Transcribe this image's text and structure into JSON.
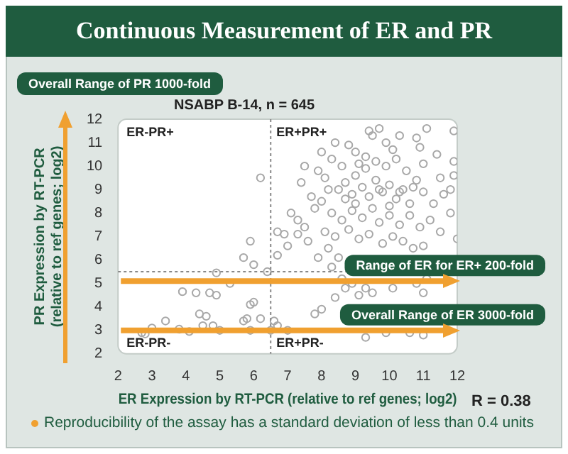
{
  "chart_data": {
    "type": "scatter",
    "title": "Continuous Measurement of ER and PR",
    "subtitle": "NSABP B-14, n = 645",
    "xlabel": "ER Expression by RT-PCR (relative to ref genes; log2)",
    "ylabel": "PR Expression by RT-PCR\n(relative to ref genes; log2)",
    "series": [
      {
        "color": "#a8a8a8",
        "x": [
          6.2,
          5.9,
          5.7,
          6.0,
          4.9,
          5.3,
          3.9,
          4.3,
          4.7,
          4.9,
          5.9,
          6.0,
          6.2,
          5.7,
          5.8,
          3.4,
          4.4,
          4.6,
          4.5,
          4.8,
          2.7,
          3.0,
          2.8,
          3.8,
          4.1,
          5.0,
          5.9,
          6.4,
          6.5,
          9.7,
          9.4,
          11.1,
          11.9,
          10.3,
          10.8,
          9.9,
          8.8,
          8.3,
          7.5,
          7.9,
          8.1,
          11.9,
          11.9,
          11.8,
          12.0,
          7.1,
          7.3,
          6.7,
          6.9,
          7.0,
          6.7,
          7.9,
          8.2,
          8.5,
          10.7,
          11.0,
          8.9,
          9.1,
          8.7,
          9.3,
          8.4,
          8.0,
          7.8,
          9.9,
          9.3,
          10.6,
          11.0,
          7.0,
          6.6,
          6.7,
          11.0,
          10.8,
          10.1,
          9.5,
          8.6,
          8.5,
          8.7,
          8.9,
          9.0,
          9.2,
          9.4,
          9.6,
          9.8,
          10.0,
          10.2,
          10.4,
          10.6,
          9.1,
          9.3,
          9.6,
          9.9,
          10.2,
          10.5,
          10.8,
          11.0,
          11.3,
          11.5,
          11.4,
          10.9,
          9.0,
          8.6,
          8.2,
          8.0,
          7.7,
          7.8,
          8.3,
          8.6,
          8.9,
          9.2,
          9.5,
          9.7,
          10.0,
          10.3,
          10.6,
          10.9,
          11.2,
          11.5,
          8.1,
          8.4,
          8.8,
          9.1,
          9.4,
          9.8,
          10.1,
          10.4,
          7.5,
          7.6,
          7.3,
          8.3,
          11.1,
          7.4,
          8.0,
          8.4,
          9.5,
          10.1,
          11.0,
          11.6,
          11.8,
          9.3,
          9.7,
          10.0,
          9.0,
          8.7,
          10.3,
          10.7
        ],
        "values": [
          9.5,
          6.8,
          6.1,
          5.8,
          5.45,
          5.0,
          4.65,
          4.6,
          4.6,
          4.5,
          4.1,
          4.2,
          3.5,
          3.4,
          3.5,
          3.4,
          3.7,
          3.6,
          3.2,
          3.2,
          2.9,
          3.1,
          2.85,
          3.05,
          2.95,
          3.0,
          3.0,
          5.5,
          3.0,
          11.6,
          11.5,
          11.6,
          11.5,
          11.3,
          11.2,
          11.0,
          10.9,
          10.3,
          10.0,
          9.8,
          9.5,
          10.2,
          9.6,
          8.0,
          6.9,
          8.0,
          7.7,
          7.2,
          7.1,
          6.6,
          6.2,
          6.1,
          6.5,
          6.1,
          6.5,
          6.6,
          5.0,
          4.5,
          4.8,
          4.8,
          4.4,
          3.9,
          3.7,
          2.9,
          2.7,
          2.9,
          2.8,
          3.0,
          3.4,
          3.2,
          4.6,
          5.0,
          4.8,
          4.6,
          5.2,
          9.0,
          9.3,
          8.8,
          9.6,
          9.1,
          8.7,
          9.4,
          8.9,
          9.2,
          8.6,
          9.0,
          8.4,
          10.1,
          10.4,
          10.2,
          10.0,
          10.3,
          9.8,
          9.4,
          8.9,
          8.4,
          9.5,
          10.5,
          10.8,
          10.6,
          10.0,
          9.0,
          8.5,
          8.7,
          8.2,
          8.0,
          7.7,
          8.1,
          7.8,
          8.2,
          7.6,
          7.9,
          7.5,
          7.9,
          7.4,
          7.7,
          7.2,
          7.2,
          7.0,
          7.3,
          6.9,
          7.1,
          6.7,
          7.0,
          6.8,
          7.4,
          6.8,
          7.1,
          5.7,
          5.2,
          9.3,
          10.6,
          11.0,
          11.3,
          10.7,
          10.1,
          8.8,
          9.0,
          9.9,
          9.0,
          8.3,
          8.4,
          8.6,
          8.9,
          9.1
        ]
      }
    ],
    "xlim": [
      2,
      12
    ],
    "xticks": [
      2,
      3,
      4,
      5,
      6,
      7,
      8,
      9,
      10,
      11,
      12
    ],
    "ylim": [
      2,
      12
    ],
    "yticks": [
      2,
      3,
      4,
      5,
      6,
      7,
      8,
      9,
      10,
      11,
      12
    ],
    "grid": false,
    "legend": false,
    "marker": "circle",
    "ref_lines": [
      {
        "axis": "x",
        "value": 6.5,
        "color": "#888888",
        "line_style": "dotted"
      },
      {
        "axis": "y",
        "value": 5.5,
        "color": "#888888",
        "line_style": "dotted"
      },
      {
        "axis": "y",
        "value": 5.1,
        "label": "Range of ER for ER+ 200-fold",
        "color": "#f0a030",
        "line_style": "solid"
      },
      {
        "axis": "y",
        "value": 3,
        "label": "Overall Range of ER 3000-fold",
        "color": "#f0a030",
        "line_style": "solid"
      }
    ],
    "annotations": [
      "ER-PR+",
      "ER+PR+",
      "ER-PR-",
      "ER+PR-",
      "R = 0.38",
      "Reproducibility of the assay has a standard deviation of less than 0.4 units",
      "Overall Range of PR 1000-fold"
    ]
  }
}
